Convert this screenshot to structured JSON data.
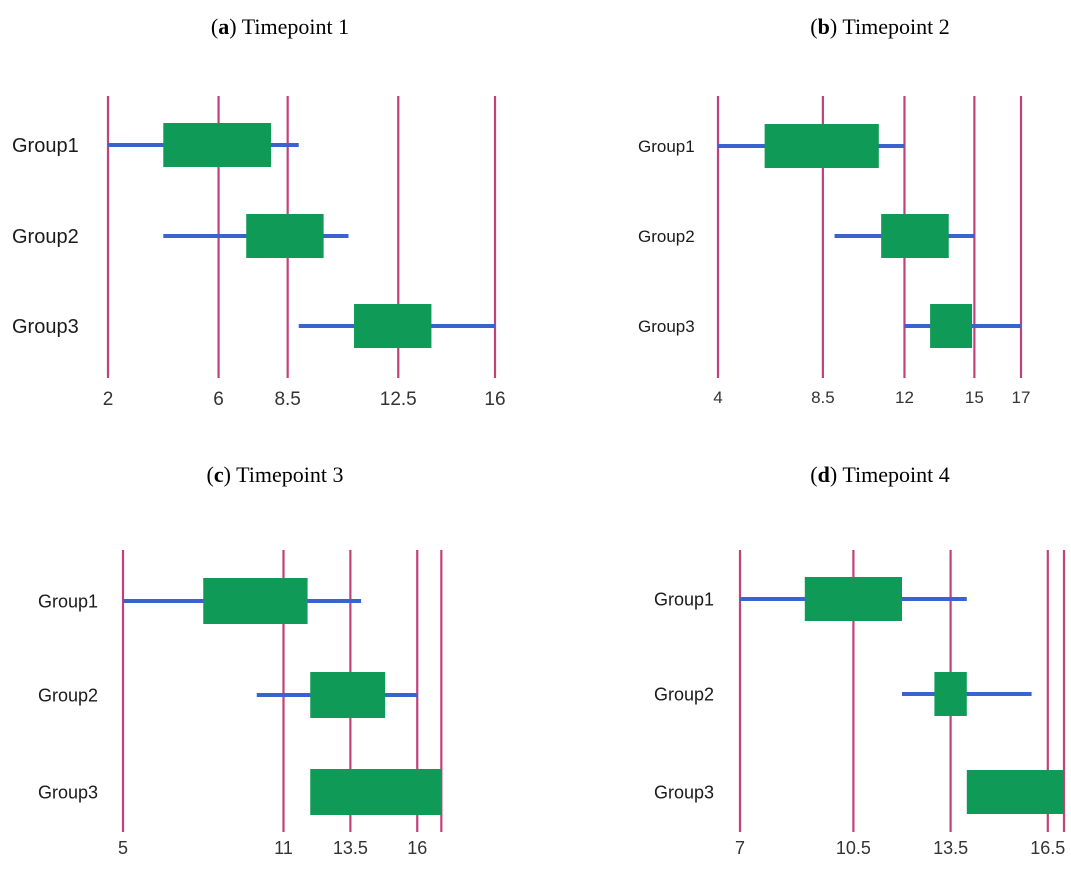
{
  "colors": {
    "refline": "#c2417a",
    "whisker": "#3a63d0",
    "box": "#0f9b57"
  },
  "chart_data": [
    {
      "type": "box",
      "label": "a",
      "title": "Timepoint 1",
      "categories": [
        "Group1",
        "Group2",
        "Group3"
      ],
      "xlim": [
        2,
        16
      ],
      "ticks": [
        2,
        6,
        8.5,
        12.5,
        16
      ],
      "ref_lines": [
        2,
        6,
        8.5,
        12.5,
        16
      ],
      "boxes": [
        {
          "min": 2,
          "q1": 4,
          "q3": 7.9,
          "max": 8.9
        },
        {
          "min": 4,
          "q1": 7,
          "q3": 9.8,
          "max": 10.7
        },
        {
          "min": 8.9,
          "q1": 10.9,
          "q3": 13.7,
          "max": 16
        }
      ]
    },
    {
      "type": "box",
      "label": "b",
      "title": "Timepoint 2",
      "categories": [
        "Group1",
        "Group2",
        "Group3"
      ],
      "xlim": [
        4,
        17
      ],
      "ticks": [
        4,
        8.5,
        12,
        15,
        17
      ],
      "ref_lines": [
        4,
        8.5,
        12,
        15,
        17
      ],
      "boxes": [
        {
          "min": 4,
          "q1": 6,
          "q3": 10.9,
          "max": 12
        },
        {
          "min": 9,
          "q1": 11,
          "q3": 13.9,
          "max": 15
        },
        {
          "min": 12,
          "q1": 13.1,
          "q3": 14.9,
          "max": 17
        }
      ]
    },
    {
      "type": "box",
      "label": "c",
      "title": "Timepoint 3",
      "categories": [
        "Group1",
        "Group2",
        "Group3"
      ],
      "xlim": [
        5,
        17
      ],
      "ticks": [
        5,
        11,
        13.5,
        16
      ],
      "ref_lines": [
        5,
        11,
        13.5,
        16,
        16.9
      ],
      "boxes": [
        {
          "min": 5,
          "q1": 8,
          "q3": 11.9,
          "max": 13.9
        },
        {
          "min": 10,
          "q1": 12,
          "q3": 14.8,
          "max": 16
        },
        {
          "min": null,
          "q1": 12,
          "q3": 16.9,
          "max": null
        }
      ]
    },
    {
      "type": "box",
      "label": "d",
      "title": "Timepoint 4",
      "categories": [
        "Group1",
        "Group2",
        "Group3"
      ],
      "xlim": [
        7,
        17
      ],
      "ticks": [
        7,
        10.5,
        13.5,
        16.5
      ],
      "ref_lines": [
        7,
        10.5,
        13.5,
        16.5,
        17
      ],
      "boxes": [
        {
          "min": 7,
          "q1": 9,
          "q3": 12,
          "max": 14
        },
        {
          "min": 12,
          "q1": 13,
          "q3": 14,
          "max": 16
        },
        {
          "min": null,
          "q1": 14,
          "q3": 17,
          "max": null
        }
      ]
    }
  ]
}
